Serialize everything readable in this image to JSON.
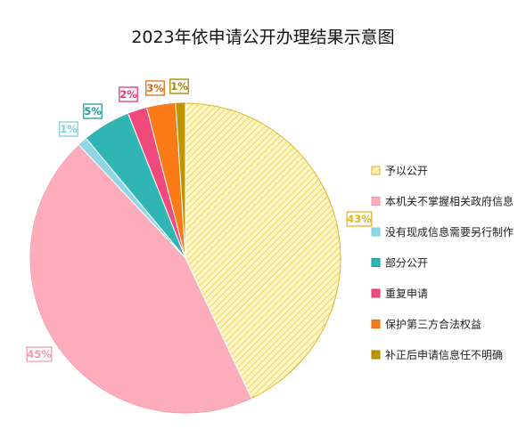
{
  "chart_data": {
    "type": "pie",
    "title": "2023年依申请公开办理结果示意图",
    "slices": [
      {
        "label": "予以公开",
        "value": 43,
        "value_label": "43%",
        "color": "#e2b422",
        "fill": "#fff3b8",
        "hatched": true
      },
      {
        "label": "本机关不掌握相关政府信息",
        "value": 45,
        "value_label": "45%",
        "color": "#f39aac",
        "fill": "#fcacbb",
        "hatched": false
      },
      {
        "label": "没有现成信息需要另行制作",
        "value": 1,
        "value_label": "1%",
        "color": "#7ccfde",
        "fill": "#8ed6e3",
        "hatched": false
      },
      {
        "label": "部分公开",
        "value": 5,
        "value_label": "5%",
        "color": "#1e9e9e",
        "fill": "#2fb6b4",
        "hatched": false
      },
      {
        "label": "重复申请",
        "value": 2,
        "value_label": "2%",
        "color": "#e8356d",
        "fill": "#f04a7c",
        "hatched": false
      },
      {
        "label": "保护第三方合法权益",
        "value": 3,
        "value_label": "3%",
        "color": "#e86a10",
        "fill": "#fb7a18",
        "hatched": false
      },
      {
        "label": "补正后申请信息任不明确",
        "value": 1,
        "value_label": "1%",
        "color": "#a88400",
        "fill": "#bd9600",
        "hatched": false
      }
    ],
    "legend_position": "right"
  }
}
